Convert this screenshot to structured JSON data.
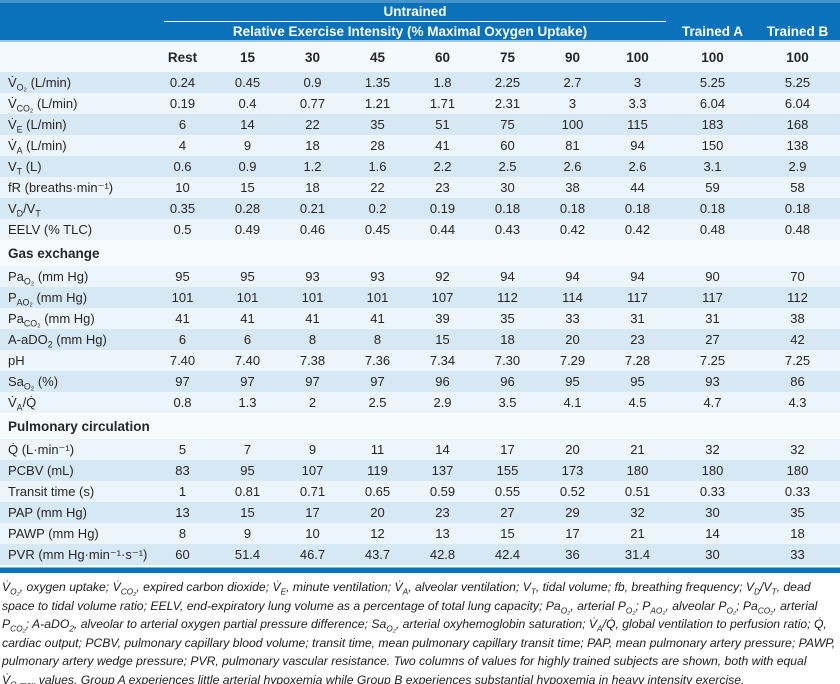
{
  "colors": {
    "banner_blue": "#0a72ba",
    "banner_edge_light_blue": "#4794cd",
    "stripe_dark": "#d7e8f5",
    "stripe_light": "#ecf5fb",
    "header_row_bg": "#f4f9fd",
    "text": "#262626"
  },
  "table": {
    "banner": {
      "untrained_label": "Untrained",
      "subtitle": "Relative Exercise Intensity (% Maximal Oxygen Uptake)",
      "trained_a_label": "Trained A",
      "trained_b_label": "Trained B"
    },
    "column_headers": [
      "Rest",
      "15",
      "30",
      "45",
      "60",
      "75",
      "90",
      "100",
      "100",
      "100"
    ],
    "sections": [
      {
        "title": "",
        "rows": [
          {
            "label": "V̇<sub>O₂</sub> (L/min)",
            "values": [
              "0.24",
              "0.45",
              "0.9",
              "1.35",
              "1.8",
              "2.25",
              "2.7",
              "3",
              "5.25",
              "5.25"
            ]
          },
          {
            "label": "V̇<sub>CO₂</sub> (L/min)",
            "values": [
              "0.19",
              "0.4",
              "0.77",
              "1.21",
              "1.71",
              "2.31",
              "3",
              "3.3",
              "6.04",
              "6.04"
            ]
          },
          {
            "label": "V̇<sub>E</sub> (L/min)",
            "values": [
              "6",
              "14",
              "22",
              "35",
              "51",
              "75",
              "100",
              "115",
              "183",
              "168"
            ]
          },
          {
            "label": "V̇<sub>A</sub> (L/min)",
            "values": [
              "4",
              "9",
              "18",
              "28",
              "41",
              "60",
              "81",
              "94",
              "150",
              "138"
            ]
          },
          {
            "label": "V<sub>T</sub> (L)",
            "values": [
              "0.6",
              "0.9",
              "1.2",
              "1.6",
              "2.2",
              "2.5",
              "2.6",
              "2.6",
              "3.1",
              "2.9"
            ]
          },
          {
            "label": "fR (breaths·min⁻¹)",
            "values": [
              "10",
              "15",
              "18",
              "22",
              "23",
              "30",
              "38",
              "44",
              "59",
              "58"
            ]
          },
          {
            "label": "V<sub>D</sub>/V<sub>T</sub>",
            "values": [
              "0.35",
              "0.28",
              "0.21",
              "0.2",
              "0.19",
              "0.18",
              "0.18",
              "0.18",
              "0.18",
              "0.18"
            ]
          },
          {
            "label": "EELV (% TLC)",
            "values": [
              "0.5",
              "0.49",
              "0.46",
              "0.45",
              "0.44",
              "0.43",
              "0.42",
              "0.42",
              "0.48",
              "0.48"
            ]
          }
        ]
      },
      {
        "title": "Gas exchange",
        "rows": [
          {
            "label": "Pa<sub>O₂</sub> (mm Hg)",
            "values": [
              "95",
              "95",
              "93",
              "93",
              "92",
              "94",
              "94",
              "94",
              "90",
              "70"
            ]
          },
          {
            "label": "P<sub>AO₂</sub> (mm Hg)",
            "values": [
              "101",
              "101",
              "101",
              "101",
              "107",
              "112",
              "114",
              "117",
              "117",
              "112"
            ]
          },
          {
            "label": "Pa<sub>CO₂</sub> (mm Hg)",
            "values": [
              "41",
              "41",
              "41",
              "41",
              "39",
              "35",
              "33",
              "31",
              "31",
              "38"
            ]
          },
          {
            "label": "A-aDO<sub>2</sub> (mm Hg)",
            "values": [
              "6",
              "6",
              "8",
              "8",
              "15",
              "18",
              "20",
              "23",
              "27",
              "42"
            ]
          },
          {
            "label": "pH",
            "values": [
              "7.40",
              "7.40",
              "7.38",
              "7.36",
              "7.34",
              "7.30",
              "7.29",
              "7.28",
              "7.25",
              "7.25"
            ]
          },
          {
            "label": "Sa<sub>O₂</sub> (%)",
            "values": [
              "97",
              "97",
              "97",
              "97",
              "96",
              "96",
              "95",
              "95",
              "93",
              "86"
            ]
          },
          {
            "label": "V̇<sub>A</sub>/Q̇",
            "values": [
              "0.8",
              "1.3",
              "2",
              "2.5",
              "2.9",
              "3.5",
              "4.1",
              "4.5",
              "4.7",
              "4.3"
            ]
          }
        ]
      },
      {
        "title": "Pulmonary circulation",
        "rows": [
          {
            "label": "Q̇ (L·min⁻¹)",
            "values": [
              "5",
              "7",
              "9",
              "11",
              "14",
              "17",
              "20",
              "21",
              "32",
              "32"
            ]
          },
          {
            "label": "PCBV (mL)",
            "values": [
              "83",
              "95",
              "107",
              "119",
              "137",
              "155",
              "173",
              "180",
              "180",
              "180"
            ]
          },
          {
            "label": "Transit time (s)",
            "values": [
              "1",
              "0.81",
              "0.71",
              "0.65",
              "0.59",
              "0.55",
              "0.52",
              "0.51",
              "0.33",
              "0.33"
            ]
          },
          {
            "label": "PAP (mm Hg)",
            "values": [
              "13",
              "15",
              "17",
              "20",
              "23",
              "27",
              "29",
              "32",
              "30",
              "35"
            ]
          },
          {
            "label": "PAWP (mm Hg)",
            "values": [
              "8",
              "9",
              "10",
              "12",
              "13",
              "15",
              "17",
              "21",
              "14",
              "18"
            ]
          },
          {
            "label": "PVR (mm Hg·min⁻¹·s⁻¹)",
            "values": [
              "60",
              "51.4",
              "46.7",
              "43.7",
              "42.8",
              "42.4",
              "36",
              "31.4",
              "30",
              "33"
            ]
          }
        ]
      }
    ],
    "footnote_html": "V̇<sub>O₂</sub>, oxygen uptake; V̇<sub>CO₂</sub>, expired carbon dioxide; V̇<sub>E</sub>, minute ventilation; V̇<sub>A</sub>, alveolar ventilation; V<sub>T</sub>, tidal volume; fb, breathing frequency; V<sub>D</sub>/V<sub>T</sub>, dead space to tidal volume ratio; EELV, end-expiratory lung volume as a percentage of total lung capacity; Pa<sub>O₂</sub>, arterial P<sub>O₂</sub>; P<sub>AO₂</sub>, alveolar P<sub>O₂</sub>; Pa<sub>CO₂</sub>, arterial P<sub>CO₂</sub>; A-aDO<sub>2</sub>, alveolar to arterial oxygen partial pressure difference; Sa<sub>O₂</sub>, arterial oxyhemoglobin saturation; V̇<sub>A</sub>/Q̇, global ventilation to perfusion ratio; Q̇, cardiac output; PCBV, pulmonary capillary blood volume; transit time, mean pulmonary capillary transit time; PAP, mean pulmonary artery pressure; PAWP, pulmonary artery wedge pressure; PVR, pulmonary vascular resistance. Two columns of values for highly trained subjects are shown, both with equal V̇<sub>O₂max</sub> values. Group A experiences little arterial hypoxemia while Group B experiences substantial hypoxemia in heavy intensity exercise."
  }
}
